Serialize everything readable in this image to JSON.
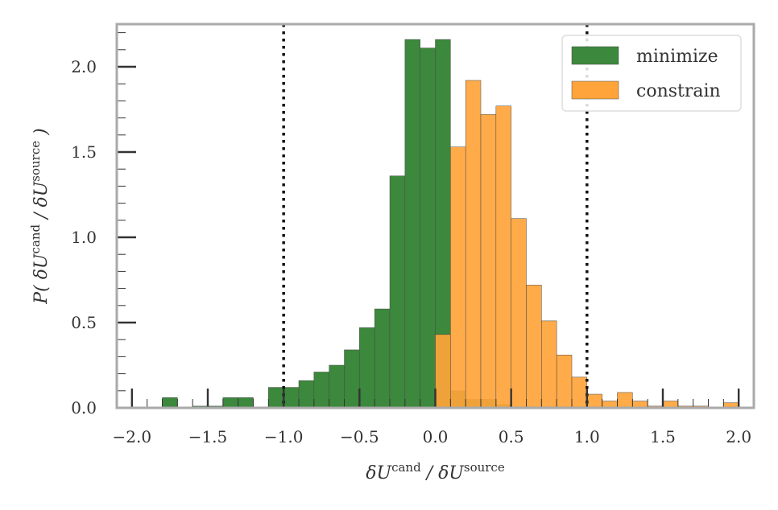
{
  "chart_data": {
    "type": "bar",
    "title": "",
    "xlabel": "δU^cand / δU^source",
    "ylabel": "P( δU^cand / δU^source )",
    "xlim": [
      -2.1,
      2.1
    ],
    "ylim": [
      0.0,
      2.25
    ],
    "x_ticks": [
      "−2.0",
      "−1.5",
      "−1.0",
      "−0.5",
      "0.0",
      "0.5",
      "1.0",
      "1.5",
      "2.0"
    ],
    "y_ticks": [
      "0.0",
      "0.5",
      "1.0",
      "1.5",
      "2.0"
    ],
    "grid": false,
    "legend_position": "top-right",
    "bin_width": 0.1,
    "reference_lines": [
      -1.0,
      1.0
    ],
    "series": [
      {
        "name": "minimize",
        "color": "#3c883c",
        "bins": [
          {
            "x0": -1.9,
            "x1": -1.8,
            "value": 0.0
          },
          {
            "x0": -1.8,
            "x1": -1.7,
            "value": 0.06
          },
          {
            "x0": -1.6,
            "x1": -1.5,
            "value": 0.01
          },
          {
            "x0": -1.5,
            "x1": -1.4,
            "value": 0.01
          },
          {
            "x0": -1.4,
            "x1": -1.3,
            "value": 0.06
          },
          {
            "x0": -1.3,
            "x1": -1.2,
            "value": 0.06
          },
          {
            "x0": -1.1,
            "x1": -1.0,
            "value": 0.12
          },
          {
            "x0": -1.0,
            "x1": -0.9,
            "value": 0.12
          },
          {
            "x0": -0.9,
            "x1": -0.8,
            "value": 0.16
          },
          {
            "x0": -0.8,
            "x1": -0.7,
            "value": 0.21
          },
          {
            "x0": -0.7,
            "x1": -0.6,
            "value": 0.25
          },
          {
            "x0": -0.6,
            "x1": -0.5,
            "value": 0.34
          },
          {
            "x0": -0.5,
            "x1": -0.4,
            "value": 0.47
          },
          {
            "x0": -0.4,
            "x1": -0.3,
            "value": 0.58
          },
          {
            "x0": -0.3,
            "x1": -0.2,
            "value": 1.36
          },
          {
            "x0": -0.2,
            "x1": -0.1,
            "value": 2.16
          },
          {
            "x0": -0.1,
            "x1": 0.0,
            "value": 2.11
          },
          {
            "x0": 0.0,
            "x1": 0.1,
            "value": 2.16
          },
          {
            "x0": 0.1,
            "x1": 0.2,
            "value": 0.1
          },
          {
            "x0": 0.2,
            "x1": 0.3,
            "value": 0.05
          },
          {
            "x0": 0.3,
            "x1": 0.4,
            "value": 0.05
          },
          {
            "x0": 0.4,
            "x1": 0.5,
            "value": 0.02
          }
        ]
      },
      {
        "name": "constrain",
        "color": "#ffa43a",
        "bins": [
          {
            "x0": 0.0,
            "x1": 0.1,
            "value": 0.43
          },
          {
            "x0": 0.1,
            "x1": 0.2,
            "value": 1.53
          },
          {
            "x0": 0.2,
            "x1": 0.3,
            "value": 1.92
          },
          {
            "x0": 0.3,
            "x1": 0.4,
            "value": 1.72
          },
          {
            "x0": 0.4,
            "x1": 0.5,
            "value": 1.77
          },
          {
            "x0": 0.5,
            "x1": 0.6,
            "value": 1.11
          },
          {
            "x0": 0.6,
            "x1": 0.7,
            "value": 0.72
          },
          {
            "x0": 0.7,
            "x1": 0.8,
            "value": 0.51
          },
          {
            "x0": 0.8,
            "x1": 0.9,
            "value": 0.31
          },
          {
            "x0": 0.9,
            "x1": 1.0,
            "value": 0.18
          },
          {
            "x0": 1.0,
            "x1": 1.1,
            "value": 0.08
          },
          {
            "x0": 1.1,
            "x1": 1.2,
            "value": 0.04
          },
          {
            "x0": 1.2,
            "x1": 1.3,
            "value": 0.09
          },
          {
            "x0": 1.3,
            "x1": 1.4,
            "value": 0.04
          },
          {
            "x0": 1.4,
            "x1": 1.5,
            "value": 0.01
          },
          {
            "x0": 1.5,
            "x1": 1.6,
            "value": 0.04
          },
          {
            "x0": 1.6,
            "x1": 1.7,
            "value": 0.01
          },
          {
            "x0": 1.7,
            "x1": 1.8,
            "value": 0.01
          },
          {
            "x0": 1.8,
            "x1": 1.9,
            "value": 0.0
          },
          {
            "x0": 1.9,
            "x1": 2.0,
            "value": 0.03
          }
        ]
      }
    ]
  }
}
